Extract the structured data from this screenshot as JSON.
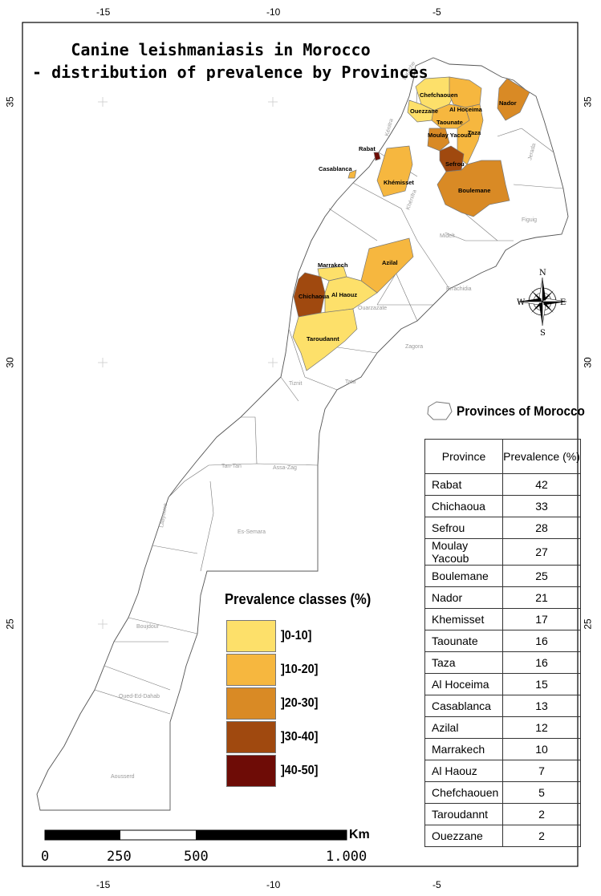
{
  "title_lines": [
    "Canine leishmaniasis in Morocco",
    "- distribution of prevalence by Provinces"
  ],
  "axis": {
    "top_ticks": [
      "-15",
      "-10",
      "-5"
    ],
    "bottom_ticks": [
      "-15",
      "-10",
      "-5"
    ],
    "left_ticks": [
      "35",
      "30",
      "25"
    ],
    "right_ticks": [
      "35",
      "30",
      "25"
    ]
  },
  "legend": {
    "title": "Prevalence classes (%)",
    "classes": [
      {
        "label": "]0-10]",
        "color": "#fde06a"
      },
      {
        "label": "]10-20]",
        "color": "#f6b73f"
      },
      {
        "label": "]20-30]",
        "color": "#d98a25"
      },
      {
        "label": "]30-40]",
        "color": "#a0490f"
      },
      {
        "label": "]40-50]",
        "color": "#6e0c06"
      }
    ]
  },
  "provinces_legend_label": "Provinces of Morocco",
  "table": {
    "headers": [
      "Province",
      "Prevalence (%)"
    ],
    "rows": [
      {
        "province": "Rabat",
        "value": "42"
      },
      {
        "province": "Chichaoua",
        "value": "33"
      },
      {
        "province": "Sefrou",
        "value": "28"
      },
      {
        "province": "Moulay Yacoub",
        "value": "27"
      },
      {
        "province": "Boulemane",
        "value": "25"
      },
      {
        "province": "Nador",
        "value": "21"
      },
      {
        "province": "Khemisset",
        "value": "17"
      },
      {
        "province": "Taounate",
        "value": "16"
      },
      {
        "province": "Taza",
        "value": "16"
      },
      {
        "province": "Al Hoceima",
        "value": "15"
      },
      {
        "province": "Casablanca",
        "value": "13"
      },
      {
        "province": "Azilal",
        "value": "12"
      },
      {
        "province": "Marrakech",
        "value": "10"
      },
      {
        "province": "Al Haouz",
        "value": "7"
      },
      {
        "province": "Chefchaouen",
        "value": "5"
      },
      {
        "province": "Taroudannt",
        "value": "2"
      },
      {
        "province": "Ouezzane",
        "value": "2"
      }
    ]
  },
  "map_labels": {
    "prevalence_provinces": [
      "Chefchaouen",
      "Ouezzane",
      "Al Hoceima",
      "Taounate",
      "Moulay Yacoub",
      "Taza",
      "Nador",
      "Rabat",
      "Casablanca",
      "Khémisset",
      "Sefrou",
      "Boulemane",
      "Marrakech",
      "Azilal",
      "Chichaoua",
      "Al Haouz",
      "Taroudannt"
    ],
    "other_provinces": [
      "Midelt",
      "Figuig",
      "Errachidia",
      "Ouarzazate",
      "Zagora",
      "Tata",
      "Tiznit",
      "Tan-Tan",
      "Assa-Zag",
      "Es-Semara",
      "Laayoune",
      "Boujdour",
      "Oued-Ed-Dahab",
      "Aousserd",
      "Jerada",
      "Kénitra",
      "Larache",
      "Khénifra"
    ]
  },
  "compass": {
    "n": "N",
    "s": "S",
    "e": "E",
    "w": "W"
  },
  "scale": {
    "labels": [
      "0",
      "250",
      "500",
      "1.000"
    ],
    "unit": "Km"
  }
}
